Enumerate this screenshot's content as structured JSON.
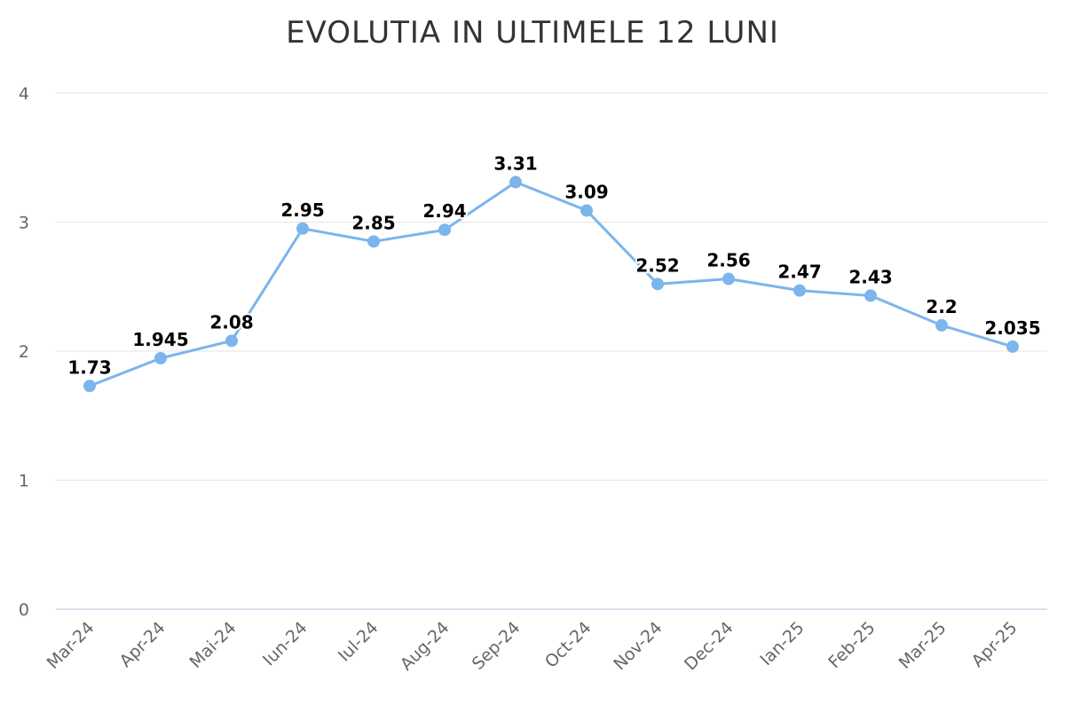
{
  "chart_data": {
    "type": "line",
    "title": "EVOLUTIA IN ULTIMELE 12 LUNI",
    "xlabel": "",
    "ylabel": "",
    "categories": [
      "Mar-24",
      "Apr-24",
      "Mai-24",
      "Iun-24",
      "Iul-24",
      "Aug-24",
      "Sep-24",
      "Oct-24",
      "Nov-24",
      "Dec-24",
      "Ian-25",
      "Feb-25",
      "Mar-25",
      "Apr-25"
    ],
    "series": [
      {
        "values": [
          1.73,
          1.945,
          2.08,
          2.95,
          2.85,
          2.94,
          3.31,
          3.09,
          2.52,
          2.56,
          2.47,
          2.43,
          2.2,
          2.035
        ],
        "labels": [
          "1.73",
          "1.945",
          "2.08",
          "2.95",
          "2.85",
          "2.94",
          "3.31",
          "3.09",
          "2.52",
          "2.56",
          "2.47",
          "2.43",
          "2.2",
          "2.035"
        ]
      }
    ],
    "ylim": [
      0,
      4
    ],
    "yticks": [
      "0",
      "1",
      "2",
      "3",
      "4"
    ],
    "grid": true,
    "legend": "none",
    "colors": {
      "line": "#7cb5ec",
      "grid": "#e6e6e6",
      "axis": "#ccd6eb"
    }
  }
}
